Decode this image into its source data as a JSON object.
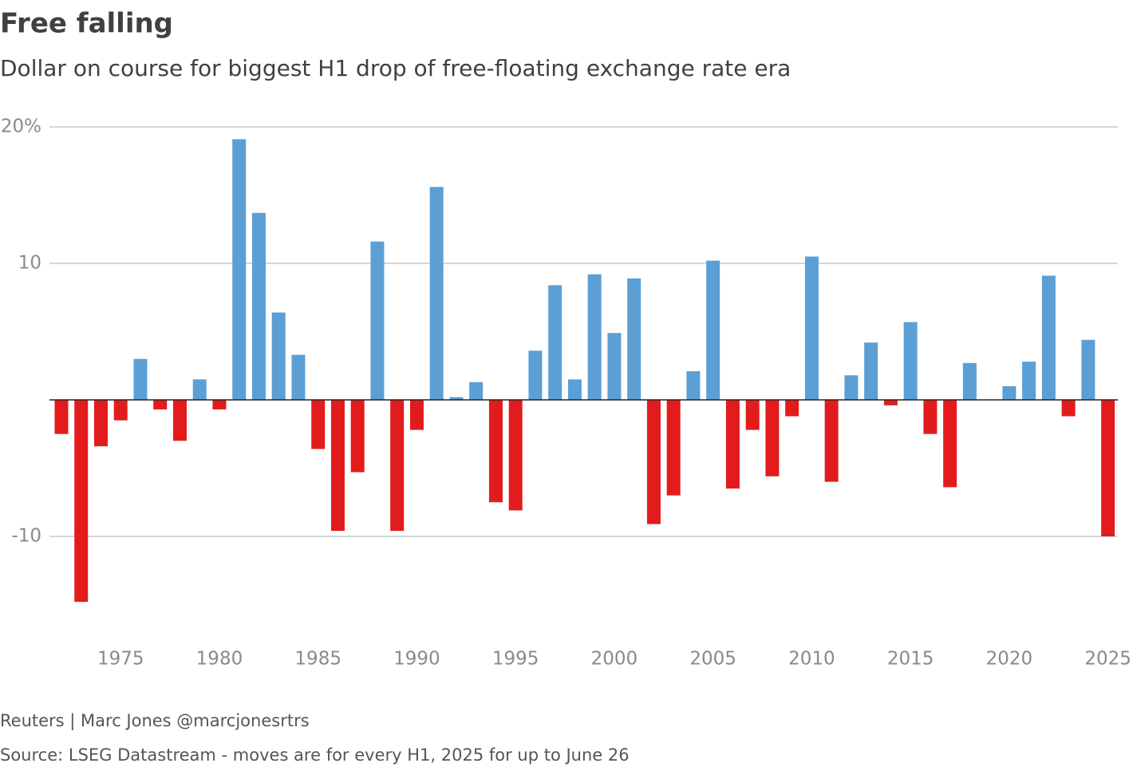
{
  "chart_data": {
    "type": "bar",
    "title": "Free falling",
    "subtitle": "Dollar on course for biggest H1 drop of free-floating exchange rate era",
    "x": [
      1972,
      1973,
      1974,
      1975,
      1976,
      1977,
      1978,
      1979,
      1980,
      1981,
      1982,
      1983,
      1984,
      1985,
      1986,
      1987,
      1988,
      1989,
      1990,
      1991,
      1992,
      1993,
      1994,
      1995,
      1996,
      1997,
      1998,
      1999,
      2000,
      2001,
      2002,
      2003,
      2004,
      2005,
      2006,
      2007,
      2008,
      2009,
      2010,
      2011,
      2012,
      2013,
      2014,
      2015,
      2016,
      2017,
      2018,
      2019,
      2020,
      2021,
      2022,
      2023,
      2024,
      2025
    ],
    "values": [
      -2.5,
      -14.8,
      -3.4,
      -1.5,
      3.0,
      -0.7,
      -3.0,
      1.5,
      -0.7,
      19.1,
      13.7,
      6.4,
      3.3,
      -3.6,
      -9.6,
      -5.3,
      11.6,
      -9.6,
      -2.2,
      15.6,
      0.2,
      1.3,
      -7.5,
      -8.1,
      3.6,
      8.4,
      1.5,
      9.2,
      4.9,
      8.9,
      -9.1,
      -7.0,
      2.1,
      10.2,
      -6.5,
      -2.2,
      -5.6,
      -1.2,
      10.5,
      -6.0,
      1.8,
      4.2,
      -0.4,
      5.7,
      -2.5,
      -6.4,
      2.7,
      0,
      1.0,
      2.8,
      9.1,
      -1.2,
      4.4,
      -10.0
    ],
    "positive_color": "#5b9fd5",
    "negative_color": "#e31b1c",
    "xlim": [
      1971.5,
      2025.5
    ],
    "xticks": [
      1975,
      1980,
      1985,
      1990,
      1995,
      2000,
      2005,
      2010,
      2015,
      2020,
      2025
    ],
    "ylim": [
      -16.5,
      20
    ],
    "yticks": [
      {
        "value": 20,
        "label": "20%"
      },
      10,
      -10
    ],
    "grid": true,
    "footer": [
      "Reuters | Marc Jones @marcjonesrtrs",
      "Source: LSEG Datastream - moves are for every H1, 2025 for up to June 26"
    ]
  }
}
